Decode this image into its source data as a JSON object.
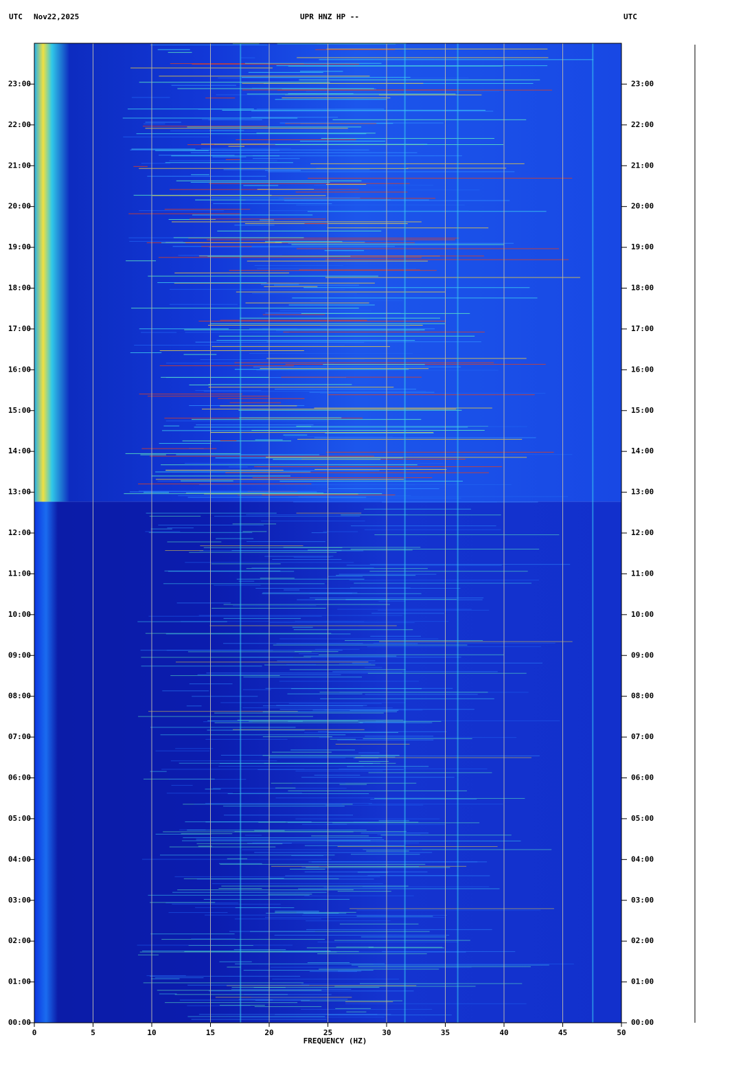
{
  "chart_data": {
    "type": "spectrogram",
    "header": {
      "left_zone": "UTC",
      "date": "Nov22,2025",
      "station": "UPR HNZ HP --",
      "right_zone": "UTC"
    },
    "xlabel": "FREQUENCY (HZ)",
    "xlim": [
      0,
      50
    ],
    "xticks": [
      0,
      5,
      10,
      15,
      20,
      25,
      30,
      35,
      40,
      45,
      50
    ],
    "ylim": [
      0,
      24
    ],
    "yticks": [
      {
        "value": 0,
        "label": "00:00"
      },
      {
        "value": 1,
        "label": "01:00"
      },
      {
        "value": 2,
        "label": "02:00"
      },
      {
        "value": 3,
        "label": "03:00"
      },
      {
        "value": 4,
        "label": "04:00"
      },
      {
        "value": 5,
        "label": "05:00"
      },
      {
        "value": 6,
        "label": "06:00"
      },
      {
        "value": 7,
        "label": "07:00"
      },
      {
        "value": 8,
        "label": "08:00"
      },
      {
        "value": 9,
        "label": "09:00"
      },
      {
        "value": 10,
        "label": "10:00"
      },
      {
        "value": 11,
        "label": "11:00"
      },
      {
        "value": 12,
        "label": "12:00"
      },
      {
        "value": 13,
        "label": "13:00"
      },
      {
        "value": 14,
        "label": "14:00"
      },
      {
        "value": 15,
        "label": "15:00"
      },
      {
        "value": 16,
        "label": "16:00"
      },
      {
        "value": 17,
        "label": "17:00"
      },
      {
        "value": 18,
        "label": "18:00"
      },
      {
        "value": 19,
        "label": "19:00"
      },
      {
        "value": 20,
        "label": "20:00"
      },
      {
        "value": 21,
        "label": "21:00"
      },
      {
        "value": 22,
        "label": "22:00"
      },
      {
        "value": 23,
        "label": "23:00"
      }
    ],
    "grid": true
  }
}
